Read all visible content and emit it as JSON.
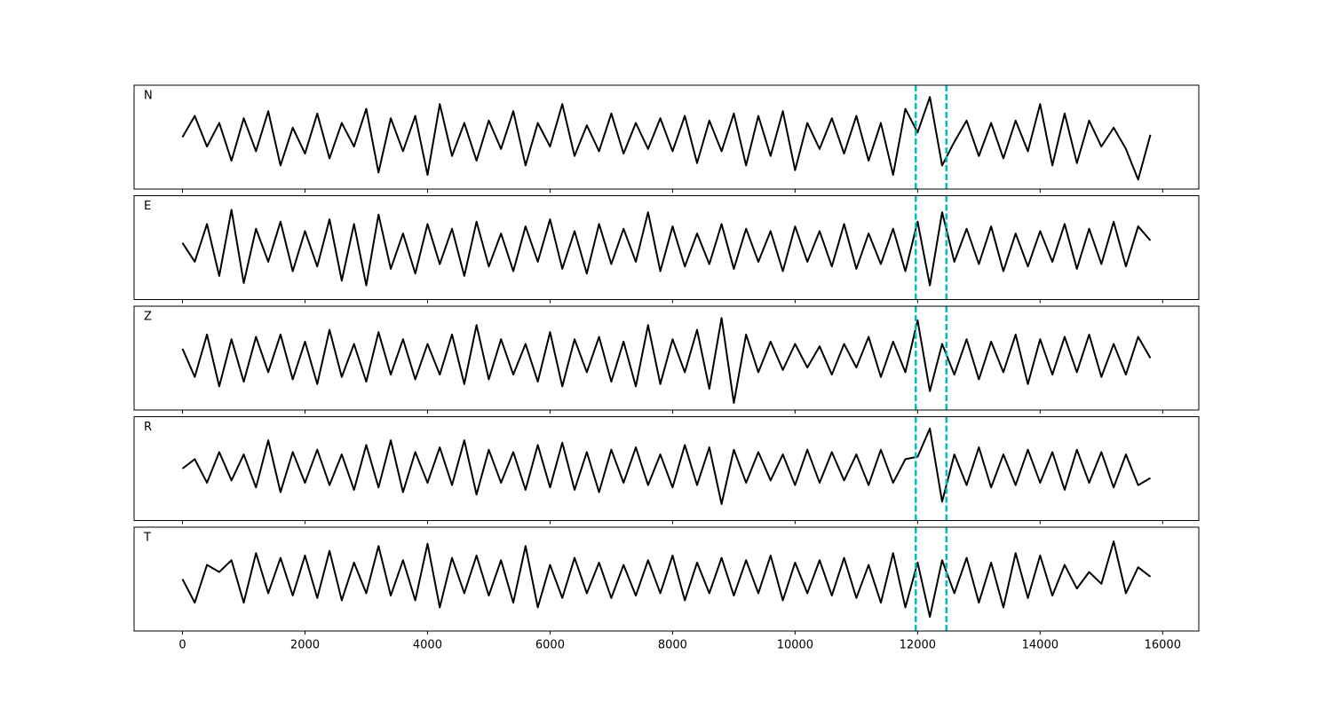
{
  "chart_data": [
    {
      "type": "line",
      "label": "N",
      "color": "#000000",
      "vlines": [
        11970,
        12470
      ],
      "vline_color": "#00bfbf",
      "xlim": [
        -790,
        16590
      ],
      "ylim": [
        -1.1,
        1.1
      ],
      "xticks": [
        0,
        2000,
        4000,
        6000,
        8000,
        10000,
        12000,
        14000,
        16000
      ],
      "show_xtick_labels": false,
      "x": [
        0,
        200,
        400,
        600,
        800,
        1000,
        1200,
        1400,
        1600,
        1800,
        2000,
        2200,
        2400,
        2600,
        2800,
        3000,
        3200,
        3400,
        3600,
        3800,
        4000,
        4200,
        4400,
        4600,
        4800,
        5000,
        5200,
        5400,
        5600,
        5800,
        6000,
        6200,
        6400,
        6600,
        6800,
        7000,
        7200,
        7400,
        7600,
        7800,
        8000,
        8200,
        8400,
        8600,
        8800,
        9000,
        9200,
        9400,
        9600,
        9800,
        10000,
        10200,
        10400,
        10600,
        10800,
        11000,
        11200,
        11400,
        11600,
        11800,
        12000,
        12200,
        12400,
        12600,
        12800,
        13000,
        13200,
        13400,
        13600,
        13800,
        14000,
        14200,
        14400,
        14600,
        14800,
        15000,
        15200,
        15400,
        15600,
        15800
      ],
      "values": [
        0,
        0.45,
        -0.2,
        0.3,
        -0.5,
        0.4,
        -0.3,
        0.55,
        -0.6,
        0.2,
        -0.35,
        0.5,
        -0.45,
        0.3,
        -0.2,
        0.6,
        -0.75,
        0.4,
        -0.3,
        0.45,
        -0.8,
        0.7,
        -0.4,
        0.3,
        -0.5,
        0.35,
        -0.25,
        0.55,
        -0.6,
        0.3,
        -0.2,
        0.7,
        -0.4,
        0.25,
        -0.3,
        0.5,
        -0.35,
        0.3,
        -0.25,
        0.4,
        -0.3,
        0.45,
        -0.55,
        0.35,
        -0.3,
        0.5,
        -0.6,
        0.45,
        -0.4,
        0.55,
        -0.7,
        0.3,
        -0.25,
        0.4,
        -0.35,
        0.45,
        -0.5,
        0.3,
        -0.8,
        0.6,
        0.1,
        0.85,
        -0.6,
        -0.1,
        0.35,
        -0.4,
        0.3,
        -0.45,
        0.35,
        -0.3,
        0.7,
        -0.6,
        0.5,
        -0.55,
        0.35,
        -0.2,
        0.2,
        -0.25,
        -0.9,
        0.05
      ]
    },
    {
      "type": "line",
      "label": "E",
      "color": "#000000",
      "vlines": [
        11970,
        12470
      ],
      "vline_color": "#00bfbf",
      "xlim": [
        -790,
        16590
      ],
      "ylim": [
        -1.1,
        1.1
      ],
      "xticks": [
        0,
        2000,
        4000,
        6000,
        8000,
        10000,
        12000,
        14000,
        16000
      ],
      "show_xtick_labels": false,
      "x": [
        0,
        200,
        400,
        600,
        800,
        1000,
        1200,
        1400,
        1600,
        1800,
        2000,
        2200,
        2400,
        2600,
        2800,
        3000,
        3200,
        3400,
        3600,
        3800,
        4000,
        4200,
        4400,
        4600,
        4800,
        5000,
        5200,
        5400,
        5600,
        5800,
        6000,
        6200,
        6400,
        6600,
        6800,
        7000,
        7200,
        7400,
        7600,
        7800,
        8000,
        8200,
        8400,
        8600,
        8800,
        9000,
        9200,
        9400,
        9600,
        9800,
        10000,
        10200,
        10400,
        10600,
        10800,
        11000,
        11200,
        11400,
        11600,
        11800,
        12000,
        12200,
        12400,
        12600,
        12800,
        13000,
        13200,
        13400,
        13600,
        13800,
        14000,
        14200,
        14400,
        14600,
        14800,
        15000,
        15200,
        15400,
        15600,
        15800
      ],
      "values": [
        0.1,
        -0.3,
        0.5,
        -0.6,
        0.8,
        -0.75,
        0.4,
        -0.3,
        0.55,
        -0.5,
        0.35,
        -0.4,
        0.6,
        -0.7,
        0.5,
        -0.8,
        0.7,
        -0.45,
        0.3,
        -0.55,
        0.5,
        -0.35,
        0.4,
        -0.6,
        0.55,
        -0.4,
        0.3,
        -0.5,
        0.45,
        -0.3,
        0.6,
        -0.45,
        0.35,
        -0.55,
        0.5,
        -0.35,
        0.4,
        -0.3,
        0.75,
        -0.5,
        0.45,
        -0.4,
        0.3,
        -0.35,
        0.5,
        -0.45,
        0.4,
        -0.3,
        0.35,
        -0.5,
        0.45,
        -0.3,
        0.35,
        -0.4,
        0.5,
        -0.45,
        0.3,
        -0.35,
        0.4,
        -0.5,
        0.55,
        -0.8,
        0.75,
        -0.3,
        0.4,
        -0.35,
        0.45,
        -0.5,
        0.3,
        -0.4,
        0.35,
        -0.3,
        0.5,
        -0.45,
        0.4,
        -0.35,
        0.55,
        -0.4,
        0.45,
        0.15
      ]
    },
    {
      "type": "line",
      "label": "Z",
      "color": "#000000",
      "vlines": [
        11970,
        12470
      ],
      "vline_color": "#00bfbf",
      "xlim": [
        -790,
        16590
      ],
      "ylim": [
        -1.1,
        1.1
      ],
      "xticks": [
        0,
        2000,
        4000,
        6000,
        8000,
        10000,
        12000,
        14000,
        16000
      ],
      "show_xtick_labels": false,
      "x": [
        0,
        200,
        400,
        600,
        800,
        1000,
        1200,
        1400,
        1600,
        1800,
        2000,
        2200,
        2400,
        2600,
        2800,
        3000,
        3200,
        3400,
        3600,
        3800,
        4000,
        4200,
        4400,
        4600,
        4800,
        5000,
        5200,
        5400,
        5600,
        5800,
        6000,
        6200,
        6400,
        6600,
        6800,
        7000,
        7200,
        7400,
        7600,
        7800,
        8000,
        8200,
        8400,
        8600,
        8800,
        9000,
        9200,
        9400,
        9600,
        9800,
        10000,
        10200,
        10400,
        10600,
        10800,
        11000,
        11200,
        11400,
        11600,
        11800,
        12000,
        12200,
        12400,
        12600,
        12800,
        13000,
        13200,
        13400,
        13600,
        13800,
        14000,
        14200,
        14400,
        14600,
        14800,
        15000,
        15200,
        15400,
        15600,
        15800
      ],
      "values": [
        0.2,
        -0.4,
        0.5,
        -0.6,
        0.4,
        -0.5,
        0.45,
        -0.3,
        0.5,
        -0.45,
        0.35,
        -0.55,
        0.6,
        -0.4,
        0.3,
        -0.5,
        0.55,
        -0.35,
        0.4,
        -0.45,
        0.3,
        -0.35,
        0.5,
        -0.55,
        0.7,
        -0.45,
        0.4,
        -0.35,
        0.3,
        -0.5,
        0.55,
        -0.6,
        0.4,
        -0.3,
        0.45,
        -0.5,
        0.35,
        -0.6,
        0.7,
        -0.55,
        0.4,
        -0.3,
        0.6,
        -0.65,
        0.85,
        -0.95,
        0.5,
        -0.3,
        0.35,
        -0.25,
        0.3,
        -0.2,
        0.25,
        -0.35,
        0.3,
        -0.2,
        0.45,
        -0.4,
        0.35,
        -0.3,
        0.8,
        -0.7,
        0.3,
        -0.35,
        0.4,
        -0.45,
        0.35,
        -0.3,
        0.5,
        -0.55,
        0.4,
        -0.35,
        0.45,
        -0.3,
        0.5,
        -0.4,
        0.3,
        -0.35,
        0.45,
        0.0
      ]
    },
    {
      "type": "line",
      "label": "R",
      "color": "#000000",
      "vlines": [
        11970,
        12470
      ],
      "vline_color": "#00bfbf",
      "xlim": [
        -790,
        16590
      ],
      "ylim": [
        -1.1,
        1.1
      ],
      "xticks": [
        0,
        2000,
        4000,
        6000,
        8000,
        10000,
        12000,
        14000,
        16000
      ],
      "show_xtick_labels": false,
      "x": [
        0,
        200,
        400,
        600,
        800,
        1000,
        1200,
        1400,
        1600,
        1800,
        2000,
        2200,
        2400,
        2600,
        2800,
        3000,
        3200,
        3400,
        3600,
        3800,
        4000,
        4200,
        4400,
        4600,
        4800,
        5000,
        5200,
        5400,
        5600,
        5800,
        6000,
        6200,
        6400,
        6600,
        6800,
        7000,
        7200,
        7400,
        7600,
        7800,
        8000,
        8200,
        8400,
        8600,
        8800,
        9000,
        9200,
        9400,
        9600,
        9800,
        10000,
        10200,
        10400,
        10600,
        10800,
        11000,
        11200,
        11400,
        11600,
        11800,
        12000,
        12200,
        12400,
        12600,
        12800,
        13000,
        13200,
        13400,
        13600,
        13800,
        14000,
        14200,
        14400,
        14600,
        14800,
        15000,
        15200,
        15400,
        15600,
        15800
      ],
      "values": [
        0.0,
        0.2,
        -0.3,
        0.35,
        -0.25,
        0.3,
        -0.4,
        0.6,
        -0.5,
        0.35,
        -0.3,
        0.4,
        -0.35,
        0.3,
        -0.45,
        0.5,
        -0.4,
        0.6,
        -0.5,
        0.35,
        -0.3,
        0.45,
        -0.35,
        0.6,
        -0.55,
        0.4,
        -0.3,
        0.35,
        -0.45,
        0.5,
        -0.4,
        0.55,
        -0.45,
        0.35,
        -0.5,
        0.4,
        -0.3,
        0.45,
        -0.35,
        0.3,
        -0.4,
        0.5,
        -0.35,
        0.45,
        -0.75,
        0.4,
        -0.3,
        0.35,
        -0.25,
        0.3,
        -0.35,
        0.4,
        -0.3,
        0.35,
        -0.25,
        0.3,
        -0.35,
        0.4,
        -0.3,
        0.2,
        0.25,
        0.85,
        -0.7,
        0.3,
        -0.35,
        0.45,
        -0.4,
        0.3,
        -0.35,
        0.4,
        -0.3,
        0.35,
        -0.45,
        0.4,
        -0.3,
        0.35,
        -0.4,
        0.3,
        -0.35,
        -0.2
      ]
    },
    {
      "type": "line",
      "label": "T",
      "color": "#000000",
      "vlines": [
        11970,
        12470
      ],
      "vline_color": "#00bfbf",
      "xlim": [
        -790,
        16590
      ],
      "ylim": [
        -1.1,
        1.1
      ],
      "xticks": [
        0,
        2000,
        4000,
        6000,
        8000,
        10000,
        12000,
        14000,
        16000
      ],
      "show_xtick_labels": true,
      "x": [
        0,
        200,
        400,
        600,
        800,
        1000,
        1200,
        1400,
        1600,
        1800,
        2000,
        2200,
        2400,
        2600,
        2800,
        3000,
        3200,
        3400,
        3600,
        3800,
        4000,
        4200,
        4400,
        4600,
        4800,
        5000,
        5200,
        5400,
        5600,
        5800,
        6000,
        6200,
        6400,
        6600,
        6800,
        7000,
        7200,
        7400,
        7600,
        7800,
        8000,
        8200,
        8400,
        8600,
        8800,
        9000,
        9200,
        9400,
        9600,
        9800,
        10000,
        10200,
        10400,
        10600,
        10800,
        11000,
        11200,
        11400,
        11600,
        11800,
        12000,
        12200,
        12400,
        12600,
        12800,
        13000,
        13200,
        13400,
        13600,
        13800,
        14000,
        14200,
        14400,
        14600,
        14800,
        15000,
        15200,
        15400,
        15600,
        15800
      ],
      "values": [
        0.0,
        -0.5,
        0.3,
        0.15,
        0.4,
        -0.5,
        0.55,
        -0.3,
        0.45,
        -0.35,
        0.5,
        -0.4,
        0.6,
        -0.45,
        0.35,
        -0.3,
        0.7,
        -0.35,
        0.4,
        -0.45,
        0.75,
        -0.6,
        0.45,
        -0.3,
        0.5,
        -0.35,
        0.4,
        -0.5,
        0.7,
        -0.6,
        0.3,
        -0.4,
        0.45,
        -0.3,
        0.35,
        -0.4,
        0.3,
        -0.35,
        0.4,
        -0.3,
        0.5,
        -0.45,
        0.35,
        -0.3,
        0.45,
        -0.35,
        0.4,
        -0.3,
        0.5,
        -0.45,
        0.35,
        -0.3,
        0.4,
        -0.35,
        0.45,
        -0.4,
        0.3,
        -0.5,
        0.55,
        -0.6,
        0.35,
        -0.8,
        0.4,
        -0.3,
        0.45,
        -0.5,
        0.35,
        -0.6,
        0.55,
        -0.4,
        0.5,
        -0.35,
        0.3,
        -0.2,
        0.15,
        -0.1,
        0.8,
        -0.3,
        0.25,
        0.05
      ]
    }
  ]
}
